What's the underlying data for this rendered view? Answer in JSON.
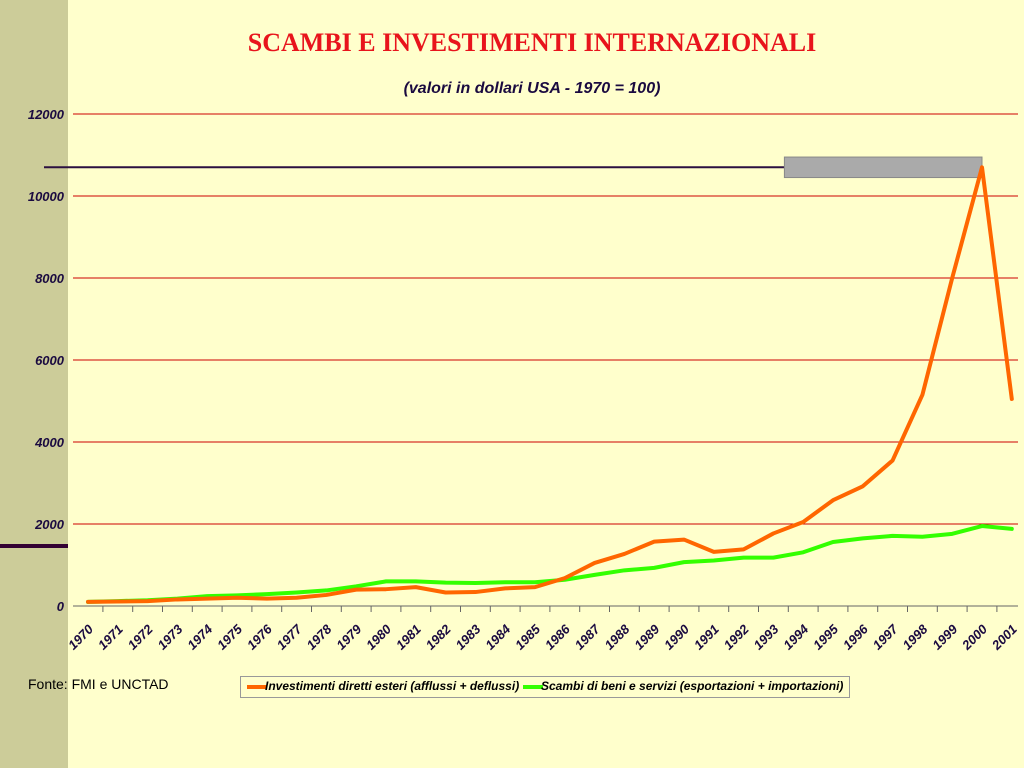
{
  "slide": {
    "title": "SCAMBI E INVESTIMENTI INTERNAZIONALI",
    "subtitle": "(valori in dollari USA - 1970 = 100)",
    "source": "Fonte: FMI e UNCTAD"
  },
  "colors": {
    "background": "#ffffcc",
    "left_band": "#cccc99",
    "gridline": "#cc0000",
    "series_fdi": "#ff6600",
    "series_trade": "#33ff00",
    "peak_marker": "#2b1040",
    "peak_box": "#aaaaaa"
  },
  "chart_data": {
    "type": "line",
    "title": "SCAMBI E INVESTIMENTI INTERNAZIONALI",
    "subtitle": "(valori in dollari USA - 1970 = 100)",
    "xlabel": "",
    "ylabel": "",
    "ylim": [
      0,
      12000
    ],
    "yticks": [
      0,
      2000,
      4000,
      6000,
      8000,
      10000,
      12000
    ],
    "grid": true,
    "legend_position": "bottom",
    "categories": [
      "1970",
      "1971",
      "1972",
      "1973",
      "1974",
      "1975",
      "1976",
      "1977",
      "1978",
      "1979",
      "1980",
      "1981",
      "1982",
      "1983",
      "1984",
      "1985",
      "1986",
      "1987",
      "1988",
      "1989",
      "1990",
      "1991",
      "1992",
      "1993",
      "1994",
      "1995",
      "1996",
      "1997",
      "1998",
      "1999",
      "2000",
      "2001"
    ],
    "series": [
      {
        "name": "Investimenti diretti esteri (afflussi + deflussi)",
        "color": "#ff6600",
        "values": [
          100,
          110,
          120,
          160,
          180,
          200,
          180,
          200,
          270,
          400,
          410,
          460,
          330,
          340,
          430,
          460,
          680,
          1050,
          1270,
          1570,
          1620,
          1320,
          1380,
          1770,
          2050,
          2580,
          2920,
          3550,
          5150,
          8000,
          10700,
          5050
        ]
      },
      {
        "name": "Scambi di beni e servizi (esportazioni + importazioni)",
        "color": "#33ff00",
        "values": [
          100,
          120,
          140,
          180,
          240,
          260,
          290,
          330,
          380,
          480,
          600,
          600,
          570,
          560,
          580,
          580,
          640,
          760,
          870,
          930,
          1070,
          1110,
          1180,
          1180,
          1310,
          1560,
          1650,
          1710,
          1690,
          1760,
          1950,
          1880
        ]
      }
    ],
    "annotations": [
      {
        "type": "horizontal_line",
        "y": 10700
      },
      {
        "type": "highlight_box",
        "y_range": [
          10450,
          10950
        ],
        "x_range": [
          "1993",
          "2000"
        ]
      }
    ]
  }
}
